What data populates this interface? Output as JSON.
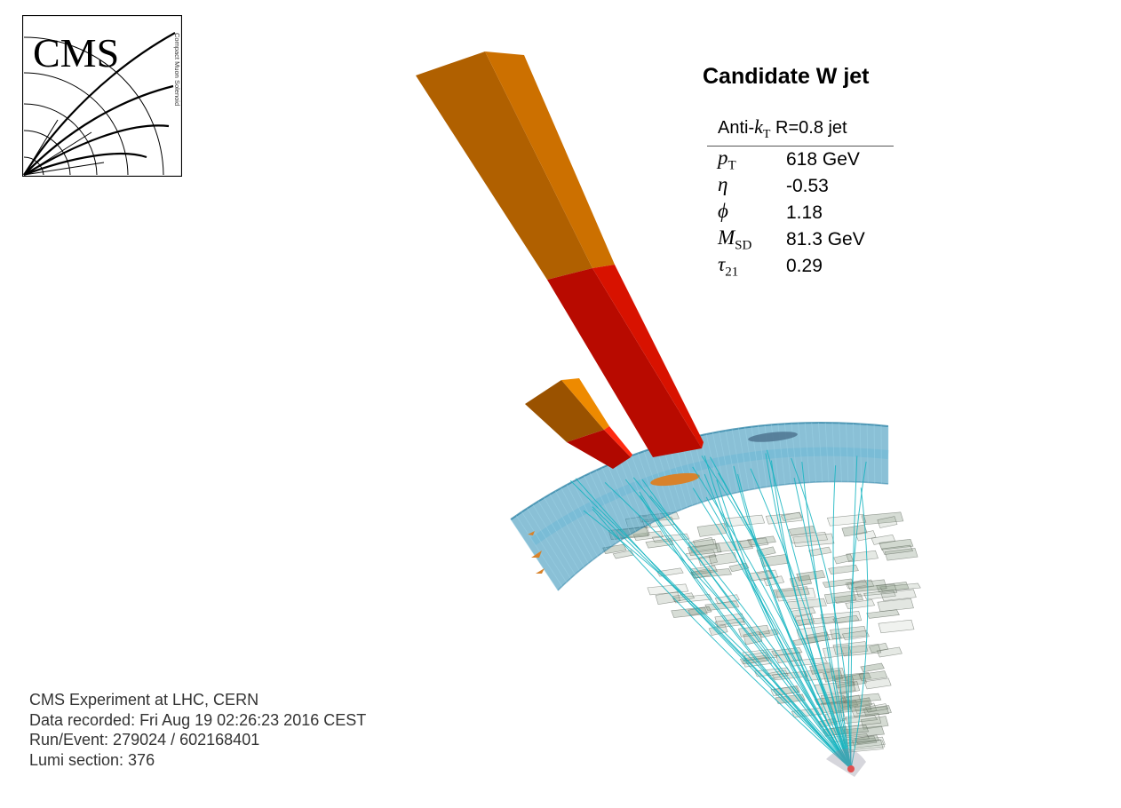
{
  "logo": {
    "text": "CMS",
    "side_text": "Compact Muon Solenoid"
  },
  "title": "Candidate W jet",
  "jet_table": {
    "header": {
      "prefix": "Anti-",
      "k": "k",
      "k_sub": "T",
      "suffix": " R=0.8 jet"
    },
    "rows": [
      {
        "symbol": "p",
        "sub": "T",
        "value": "618 GeV"
      },
      {
        "symbol": "η",
        "sub": "",
        "value": "-0.53"
      },
      {
        "symbol": "ϕ",
        "sub": "",
        "value": "1.18"
      },
      {
        "symbol": "M",
        "sub": "SD",
        "value": "81.3 GeV"
      },
      {
        "symbol": "τ",
        "sub": "21",
        "value": "0.29"
      }
    ]
  },
  "event_info": {
    "line1": "CMS Experiment at LHC, CERN",
    "line2": "Data recorded: Fri Aug 19 02:26:23 2016 CEST",
    "line3": "Run/Event: 279024 / 602168401",
    "line4": "Lumi section: 376"
  },
  "colors": {
    "hcal_orange": "#cc7000",
    "hcal_orange_dark": "#b06000",
    "ecal_red": "#d20a00",
    "ecal_red_dark": "#b00800",
    "tracker_blue": "#2a8db5",
    "tracks": "#14b4c0",
    "muon_chambers": "#7a8a78",
    "vertex": "#e05050"
  }
}
